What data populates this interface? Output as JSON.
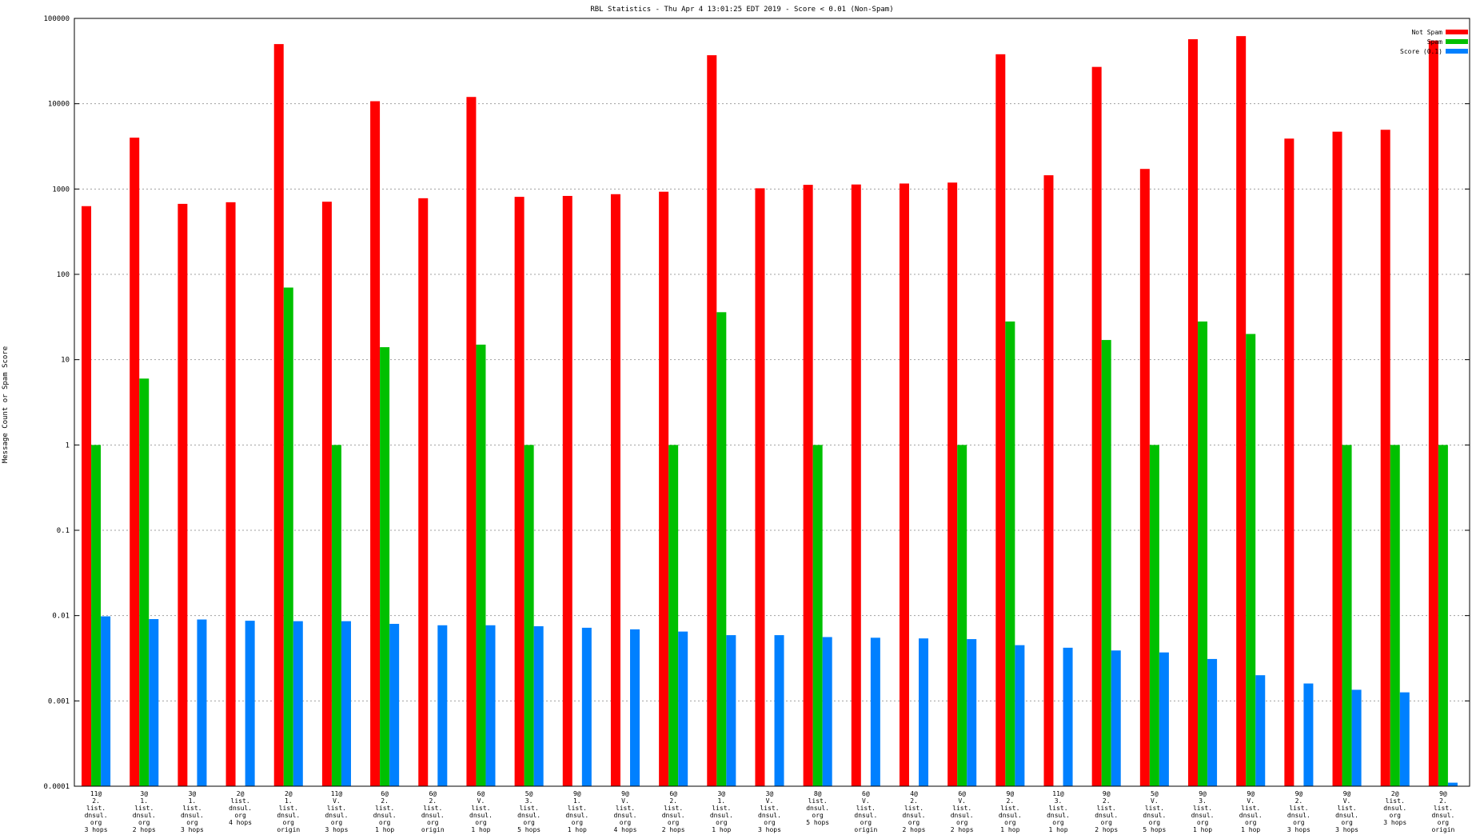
{
  "chart_data": {
    "type": "bar",
    "title": "RBL Statistics - Thu Apr  4 13:01:25 EDT 2019 - Score < 0.01 (Non-Spam)",
    "ylabel": "Message Count or Spam Score",
    "xlabel": "",
    "yscale": "log",
    "ylim": [
      0.0001,
      100000
    ],
    "yticks": [
      "0.0001",
      "0.001",
      "0.01",
      "0.1",
      "1",
      "10",
      "100",
      "1000",
      "10000",
      "100000"
    ],
    "grid": true,
    "legend_position": "top-right",
    "categories": [
      [
        "11@",
        "2.",
        "list.",
        "dnsul.",
        "org",
        "3 hops"
      ],
      [
        "3@",
        "1.",
        "list.",
        "dnsul.",
        "org",
        "2 hops"
      ],
      [
        "3@",
        "1.",
        "list.",
        "dnsul.",
        "org",
        "3 hops"
      ],
      [
        "2@",
        "list.",
        "dnsul.",
        "org",
        "4 hops"
      ],
      [
        "2@",
        "1.",
        "list.",
        "dnsul.",
        "org",
        "origin"
      ],
      [
        "11@",
        "V.",
        "list.",
        "dnsul.",
        "org",
        "3 hops"
      ],
      [
        "6@",
        "2.",
        "list.",
        "dnsul.",
        "org",
        "1 hop"
      ],
      [
        "6@",
        "2.",
        "list.",
        "dnsul.",
        "org",
        "origin"
      ],
      [
        "6@",
        "V.",
        "list.",
        "dnsul.",
        "org",
        "1 hop"
      ],
      [
        "5@",
        "3.",
        "list.",
        "dnsul.",
        "org",
        "5 hops"
      ],
      [
        "9@",
        "1.",
        "list.",
        "dnsul.",
        "org",
        "1 hop"
      ],
      [
        "9@",
        "V.",
        "list.",
        "dnsul.",
        "org",
        "4 hops"
      ],
      [
        "6@",
        "2.",
        "list.",
        "dnsul.",
        "org",
        "2 hops"
      ],
      [
        "3@",
        "1.",
        "list.",
        "dnsul.",
        "org",
        "1 hop"
      ],
      [
        "3@",
        "V.",
        "list.",
        "dnsul.",
        "org",
        "3 hops"
      ],
      [
        "8@",
        "list.",
        "dnsul.",
        "org",
        "5 hops"
      ],
      [
        "6@",
        "V.",
        "list.",
        "dnsul.",
        "org",
        "origin"
      ],
      [
        "4@",
        "2.",
        "list.",
        "dnsul.",
        "org",
        "2 hops"
      ],
      [
        "6@",
        "V.",
        "list.",
        "dnsul.",
        "org",
        "2 hops"
      ],
      [
        "9@",
        "2.",
        "list.",
        "dnsul.",
        "org",
        "1 hop"
      ],
      [
        "11@",
        "3.",
        "list.",
        "dnsul.",
        "org",
        "1 hop"
      ],
      [
        "9@",
        "2.",
        "list.",
        "dnsul.",
        "org",
        "2 hops"
      ],
      [
        "5@",
        "V.",
        "list.",
        "dnsul.",
        "org",
        "5 hops"
      ],
      [
        "9@",
        "3.",
        "list.",
        "dnsul.",
        "org",
        "1 hop"
      ],
      [
        "9@",
        "V.",
        "list.",
        "dnsul.",
        "org",
        "1 hop"
      ],
      [
        "9@",
        "2.",
        "list.",
        "dnsul.",
        "org",
        "3 hops"
      ],
      [
        "9@",
        "V.",
        "list.",
        "dnsul.",
        "org",
        "3 hops"
      ],
      [
        "2@",
        "list.",
        "dnsul.",
        "org",
        "3 hops"
      ],
      [
        "9@",
        "2.",
        "list.",
        "dnsul.",
        "org",
        "origin"
      ]
    ],
    "series": [
      {
        "name": "Not Spam",
        "color": "#ff0000",
        "values": [
          630,
          4000,
          670,
          700,
          50000,
          710,
          10700,
          780,
          12000,
          810,
          830,
          870,
          930,
          37000,
          1020,
          1120,
          1130,
          1160,
          1190,
          38000,
          1450,
          27000,
          1720,
          57000,
          62000,
          3900,
          4700,
          4950,
          55000
        ]
      },
      {
        "name": "Spam",
        "color": "#00c000",
        "values": [
          1,
          6,
          0,
          0,
          70,
          1,
          14,
          0,
          15,
          1,
          0,
          0,
          1,
          36,
          0,
          1,
          0,
          0,
          1,
          28,
          0,
          17,
          1,
          28,
          20,
          0,
          1,
          1,
          1
        ]
      },
      {
        "name": "Score (0.1)",
        "color": "#0080ff",
        "values": [
          0.0098,
          0.0091,
          0.009,
          0.0087,
          0.0086,
          0.0086,
          0.008,
          0.0077,
          0.0077,
          0.0075,
          0.0072,
          0.0069,
          0.0065,
          0.0059,
          0.0059,
          0.0056,
          0.0055,
          0.0054,
          0.0053,
          0.0045,
          0.0042,
          0.0039,
          0.0037,
          0.0031,
          0.002,
          0.0016,
          0.00135,
          0.00126,
          0.00011
        ]
      }
    ]
  }
}
